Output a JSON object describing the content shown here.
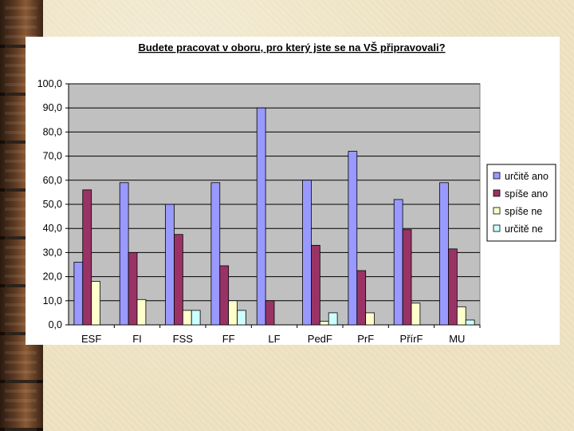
{
  "chart_data": {
    "type": "bar",
    "title": "Budete pracovat v oboru, pro který jste se na VŠ připravovali?",
    "xlabel": "",
    "ylabel": "",
    "ylim": [
      0,
      100
    ],
    "yticks": [
      "0,0",
      "10,0",
      "20,0",
      "30,0",
      "40,0",
      "50,0",
      "60,0",
      "70,0",
      "80,0",
      "90,0",
      "100,0"
    ],
    "categories": [
      "ESF",
      "FI",
      "FSS",
      "FF",
      "LF",
      "PedF",
      "PrF",
      "PřírF",
      "MU"
    ],
    "series": [
      {
        "name": "určitě ano",
        "color": "#9999ff",
        "values": [
          26,
          59,
          50,
          59,
          90,
          60,
          72,
          52,
          59
        ]
      },
      {
        "name": "spíše ano",
        "color": "#993366",
        "values": [
          56,
          30,
          37.5,
          24.5,
          10,
          33,
          22.5,
          39.5,
          31.5
        ]
      },
      {
        "name": "spíše ne",
        "color": "#ffffcc",
        "values": [
          18,
          10.5,
          6,
          10,
          0,
          1.5,
          5,
          9,
          7.5
        ]
      },
      {
        "name": "určitě ne",
        "color": "#ccffff",
        "values": [
          0,
          0,
          6,
          6,
          0,
          5,
          0,
          0,
          2
        ]
      }
    ],
    "grid": true,
    "plot_background": "#c0c0c0",
    "legend": "right"
  }
}
